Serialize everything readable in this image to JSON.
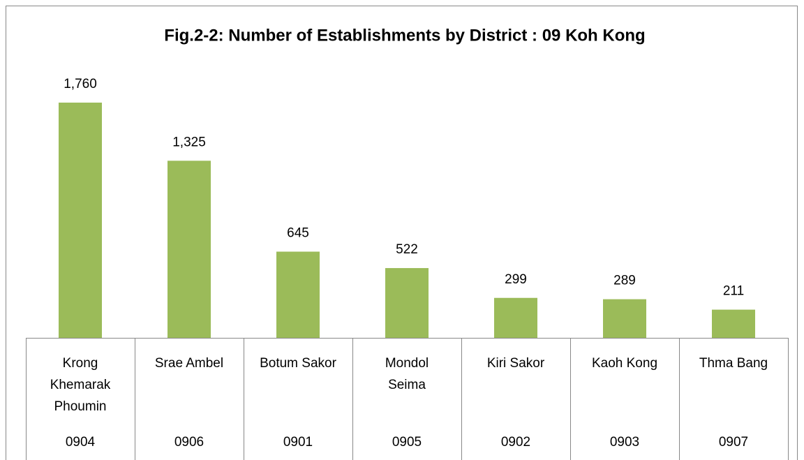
{
  "chart_data": {
    "type": "bar",
    "title": "Fig.2-2: Number of Establishments by District : 09 Koh Kong",
    "categories": [
      [
        "Krong",
        "Khemarak",
        "Phoumin"
      ],
      [
        "Srae Ambel"
      ],
      [
        "Botum Sakor"
      ],
      [
        "Mondol",
        "Seima"
      ],
      [
        "Kiri Sakor"
      ],
      [
        "Kaoh Kong"
      ],
      [
        "Thma Bang"
      ]
    ],
    "codes": [
      "0904",
      "0906",
      "0901",
      "0905",
      "0902",
      "0903",
      "0907"
    ],
    "values": [
      1760,
      1325,
      645,
      522,
      299,
      289,
      211
    ],
    "value_labels": [
      "1,760",
      "1,325",
      "645",
      "522",
      "299",
      "289",
      "211"
    ],
    "color": "#9bbb59"
  }
}
